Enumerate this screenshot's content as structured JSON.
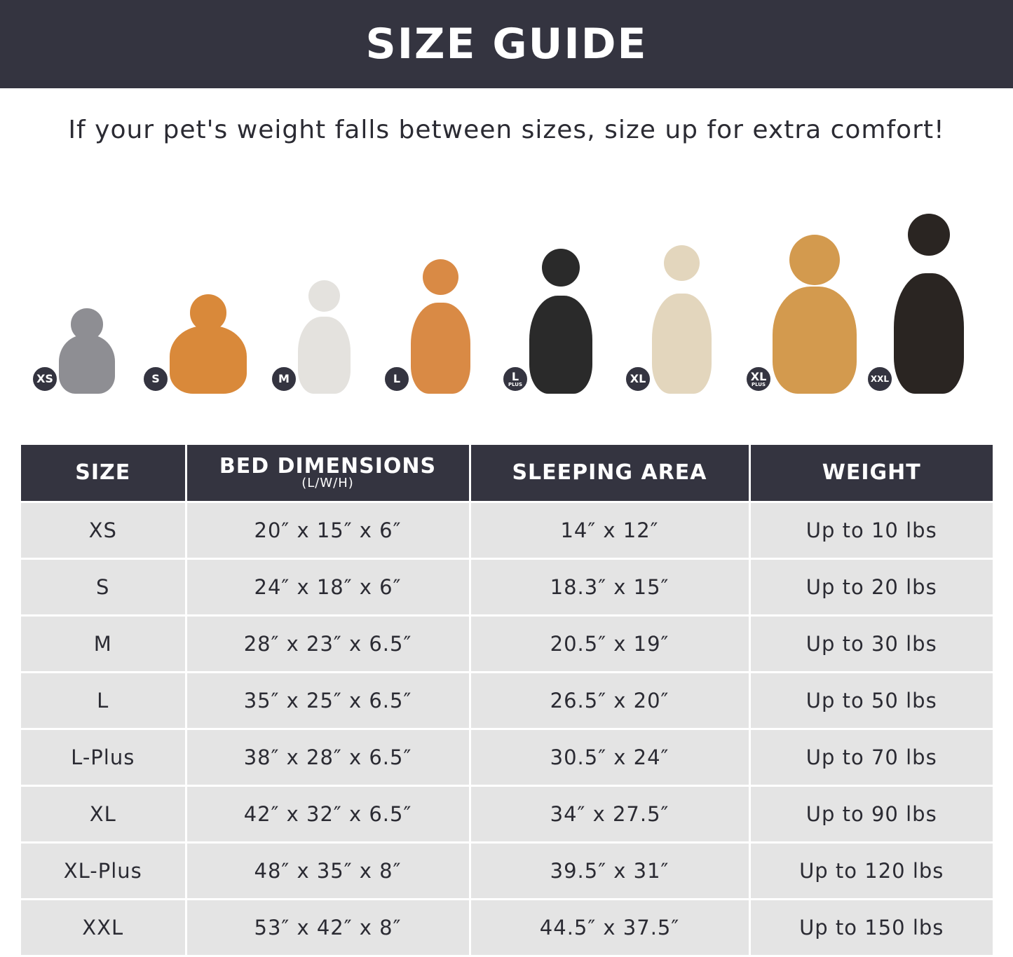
{
  "title": "SIZE GUIDE",
  "subtitle": "If your pet's weight falls between sizes, size up for extra comfort!",
  "pets": [
    {
      "badge": "XS",
      "sub": "",
      "animal": "cat",
      "color": "#8e8e93"
    },
    {
      "badge": "S",
      "sub": "",
      "animal": "pomeranian",
      "color": "#d9893a"
    },
    {
      "badge": "M",
      "sub": "",
      "animal": "french-bulldog",
      "color": "#e4e2de"
    },
    {
      "badge": "L",
      "sub": "",
      "animal": "shiba-inu",
      "color": "#d98a45"
    },
    {
      "badge": "L",
      "sub": "PLUS",
      "animal": "border-collie",
      "color": "#2a2a2a"
    },
    {
      "badge": "XL",
      "sub": "",
      "animal": "labrador",
      "color": "#e3d6bd"
    },
    {
      "badge": "XL",
      "sub": "PLUS",
      "animal": "golden-retriever",
      "color": "#d39a4e"
    },
    {
      "badge": "XXL",
      "sub": "",
      "animal": "doberman",
      "color": "#2a2522"
    }
  ],
  "table": {
    "headers": [
      {
        "label": "SIZE",
        "sub": ""
      },
      {
        "label": "BED DIMENSIONS",
        "sub": "(L/W/H)"
      },
      {
        "label": "SLEEPING AREA",
        "sub": ""
      },
      {
        "label": "WEIGHT",
        "sub": ""
      }
    ],
    "rows": [
      [
        "XS",
        "20″ x 15″ x 6″",
        "14″ x 12″",
        "Up to 10 lbs"
      ],
      [
        "S",
        "24″ x 18″ x 6″",
        "18.3″ x 15″",
        "Up to 20 lbs"
      ],
      [
        "M",
        "28″ x 23″ x 6.5″",
        "20.5″ x 19″",
        "Up to 30 lbs"
      ],
      [
        "L",
        "35″ x 25″ x 6.5″",
        "26.5″ x 20″",
        "Up to 50 lbs"
      ],
      [
        "L-Plus",
        "38″ x 28″ x 6.5″",
        "30.5″ x 24″",
        "Up to 70 lbs"
      ],
      [
        "XL",
        "42″ x 32″ x 6.5″",
        "34″ x 27.5″",
        "Up to 90 lbs"
      ],
      [
        "XL-Plus",
        "48″ x 35″ x 8″",
        "39.5″ x 31″",
        "Up to 120 lbs"
      ],
      [
        "XXL",
        "53″ x 42″ x 8″",
        "44.5″ x 37.5″",
        "Up to 150 lbs"
      ]
    ]
  },
  "colors": {
    "header_bg": "#343440",
    "row_bg": "#e4e4e4"
  }
}
